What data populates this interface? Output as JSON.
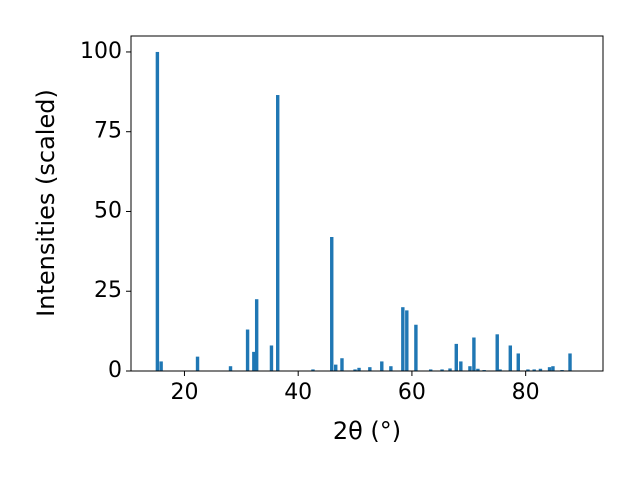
{
  "chart_data": {
    "type": "bar",
    "x_label": "2θ (°)",
    "y_label": "Intensities (scaled)",
    "x": [
      15.24,
      15.9,
      22.3,
      28.1,
      31.1,
      32.2,
      32.7,
      35.3,
      36.4,
      42.6,
      45.9,
      46.6,
      47.7,
      50.0,
      50.7,
      52.6,
      54.7,
      56.3,
      58.4,
      59.1,
      60.7,
      63.3,
      65.3,
      66.7,
      67.8,
      68.6,
      70.2,
      70.9,
      71.6,
      72.7,
      75.0,
      75.5,
      77.3,
      78.7,
      80.4,
      81.5,
      82.6,
      84.2,
      84.8,
      86.4,
      87.8
    ],
    "values": [
      100,
      3,
      4.5,
      1.5,
      13,
      6,
      22.5,
      8,
      86.5,
      0.5,
      42,
      2,
      4,
      0.5,
      1,
      1.2,
      3,
      1.5,
      20,
      19,
      14.5,
      0.5,
      0.5,
      0.8,
      8.5,
      3,
      1.5,
      10.5,
      0.7,
      0.3,
      11.5,
      0.5,
      8,
      5.5,
      0.5,
      0.5,
      0.7,
      1.2,
      1.5,
      0.3,
      5.5
    ],
    "color": "#1f77b4",
    "xlim": [
      10.6,
      93.6
    ],
    "xticks": [
      20,
      40,
      60,
      80
    ],
    "ylim": [
      0,
      105
    ],
    "yticks": [
      0,
      25,
      50,
      75,
      100
    ]
  }
}
